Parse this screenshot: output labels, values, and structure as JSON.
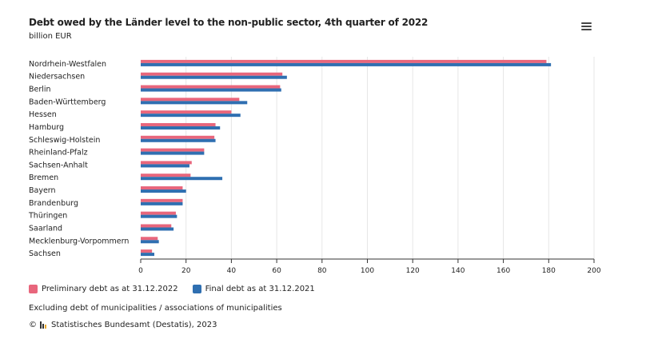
{
  "title": "Debt owed by the Länder level to the non-public sector, 4th quarter of 2022",
  "subtitle": "billion EUR",
  "menu_icon": "hamburger-menu-icon",
  "colors": {
    "preliminary": "#e8667c",
    "final": "#2f6fb1",
    "grid": "#e6e6e6",
    "axis": "#333333"
  },
  "chart_data": {
    "type": "bar",
    "orientation": "horizontal",
    "categories": [
      "Nordrhein-Westfalen",
      "Niedersachsen",
      "Berlin",
      "Baden-Württemberg",
      "Hessen",
      "Hamburg",
      "Schleswig-Holstein",
      "Rheinland-Pfalz",
      "Sachsen-Anhalt",
      "Bremen",
      "Bayern",
      "Brandenburg",
      "Thüringen",
      "Saarland",
      "Mecklenburg-Vorpommern",
      "Sachsen"
    ],
    "series": [
      {
        "name": "Preliminary debt as at 31.12.2022",
        "values": [
          179,
          62.5,
          61.5,
          43.5,
          40,
          33,
          32.5,
          28,
          22.5,
          22,
          18.5,
          18.5,
          15.5,
          13.5,
          7.5,
          5
        ]
      },
      {
        "name": "Final debt as at 31.12.2021",
        "values": [
          181,
          64.5,
          62,
          47,
          44,
          35,
          33,
          28,
          21.5,
          36,
          20,
          18.5,
          16,
          14.5,
          8,
          6
        ]
      }
    ],
    "xlim": [
      0,
      200
    ],
    "xticks": [
      "0",
      "20",
      "40",
      "60",
      "80",
      "100",
      "120",
      "140",
      "160",
      "180",
      "200"
    ],
    "grid": true,
    "legend_position": "bottom-left"
  },
  "note": "Excluding debt of municipalities / associations of municipalities",
  "credits": {
    "prefix": "©",
    "logo_icon": "destatis-logo-icon",
    "text": "Statistisches Bundesamt (Destatis), 2023"
  }
}
